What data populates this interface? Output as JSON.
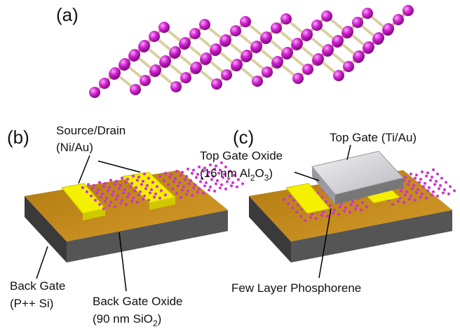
{
  "panels": {
    "a": {
      "label": "(a)"
    },
    "b": {
      "label": "(b)",
      "source_drain": {
        "line1": "Source/Drain",
        "line2": "(Ni/Au)"
      },
      "back_gate": {
        "line1": "Back Gate",
        "line2": "(P++ Si)"
      },
      "back_gate_oxide": {
        "line1": "Back Gate Oxide",
        "line2_parts": [
          "(90 nm SiO",
          "2",
          ")"
        ]
      }
    },
    "c": {
      "label": "(c)",
      "top_gate": "Top Gate (Ti/Au)",
      "top_gate_oxide": {
        "line1": "Top Gate Oxide",
        "line2_parts": [
          "(16 nm Al",
          "2",
          "O",
          "3",
          ")"
        ]
      },
      "phosphorene": "Few Layer Phosphorene"
    }
  }
}
